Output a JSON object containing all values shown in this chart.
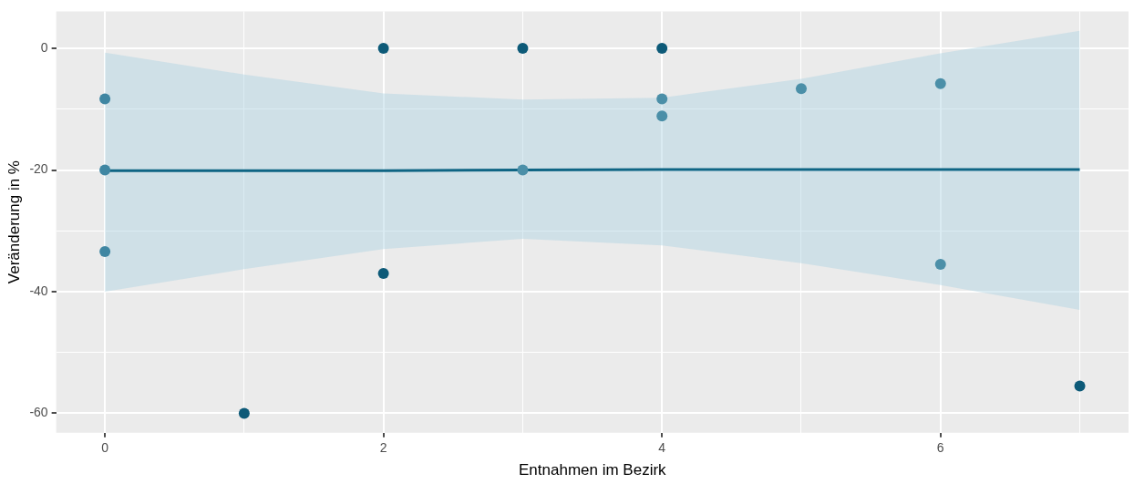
{
  "chart_data": {
    "type": "scatter",
    "xlabel": "Entnahmen im Bezirk",
    "ylabel": "Veränderung in %",
    "xlim": [
      -0.35,
      7.35
    ],
    "xticks": [
      0,
      {
        "value": 1,
        "label": null
      },
      2,
      {
        "value": 3,
        "label": null
      },
      4,
      {
        "value": 5,
        "label": null
      },
      6,
      {
        "value": 7,
        "label": null
      }
    ],
    "ylim": [
      -63.2,
      6.1
    ],
    "yticks": [
      -60,
      {
        "value": -50,
        "label": null
      },
      -40,
      {
        "value": -30,
        "label": null
      },
      -20,
      {
        "value": -10,
        "label": null
      },
      0
    ],
    "grid": true,
    "legend": false,
    "series": [
      {
        "marker": "circle",
        "x": [
          0,
          0,
          0,
          1,
          2,
          2,
          3,
          3,
          4,
          4,
          4,
          5,
          6,
          6,
          7
        ],
        "values": [
          -8.3,
          -20,
          -33.4,
          -60,
          0,
          -37,
          0,
          -20,
          0,
          -8.3,
          -11.1,
          -6.6,
          -5.8,
          -35.5,
          -55.5
        ],
        "colors": [
          "#3f86a2",
          "#3f86a2",
          "#3f86a2",
          "#0d5a78",
          "#0d5a78",
          "#0d5a78",
          "#0d5a78",
          "#4b8fa8",
          "#0d5a78",
          "#4b8fa8",
          "#4b8fa8",
          "#4b8fa8",
          "#4b8fa8",
          "#4b8fa8",
          "#0d5a78"
        ]
      },
      {
        "type": "line",
        "color": "#0f6584",
        "x": [
          0,
          1,
          2,
          3,
          4,
          5,
          6,
          7
        ],
        "values": [
          -20.1,
          -20.1,
          -20.1,
          -20,
          -19.9,
          -19.9,
          -19.9,
          -19.9
        ],
        "lower": [
          -40,
          -36.3,
          -33,
          -31.3,
          -32.4,
          -35.3,
          -38.9,
          -43
        ],
        "upper": [
          -0.7,
          -4.3,
          -7.4,
          -8.4,
          -8.1,
          -5,
          -0.8,
          2.9
        ]
      }
    ]
  }
}
